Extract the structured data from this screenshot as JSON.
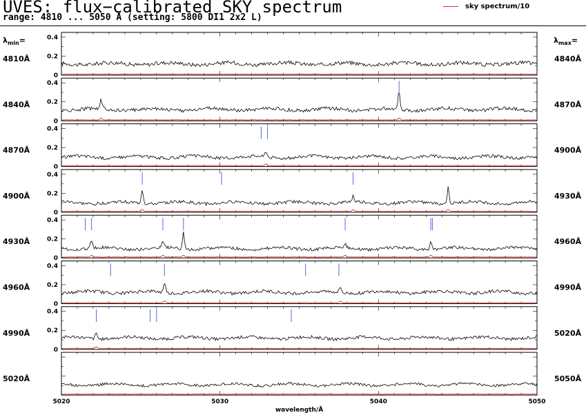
{
  "header": {
    "title": "UVES: flux−calibrated SKY spectrum",
    "subtitle": "range: 4810 ... 5050 Å (setting: 5800 DI1 2x2 L)",
    "legend_label": "sky spectrum/10"
  },
  "side_labels": {
    "lambda_min_label": "λ",
    "lambda_min_sub": "min",
    "lambda_max_label": "λ",
    "lambda_max_sub": "max",
    "eq": "="
  },
  "chart_data": {
    "type": "line",
    "xlabel": "wavelength/Å",
    "colors": {
      "flux": "#000000",
      "sky": "#e03030",
      "marker": "#5566dd"
    },
    "panels": [
      {
        "min_label": "4810Å",
        "max_label": "4840Å",
        "x_range": [
          4810,
          4840
        ],
        "ylim": [
          0,
          0.45
        ],
        "yticks": [
          "0",
          "0.2",
          "0.4"
        ],
        "baseline": 0.12,
        "noise": 0.02,
        "peaks": [],
        "markers": []
      },
      {
        "min_label": "4840Å",
        "max_label": "4870Å",
        "x_range": [
          4840,
          4870
        ],
        "ylim": [
          0,
          0.45
        ],
        "yticks": [
          "0",
          "0.2",
          "0.4"
        ],
        "baseline": 0.12,
        "noise": 0.018,
        "peaks": [
          [
            4842.5,
            0.22
          ],
          [
            4861.3,
            0.31
          ]
        ],
        "markers": [
          4861.3
        ]
      },
      {
        "min_label": "4870Å",
        "max_label": "4900Å",
        "x_range": [
          4870,
          4900
        ],
        "ylim": [
          0,
          0.45
        ],
        "yticks": [
          "0",
          "0.2",
          "0.4"
        ],
        "baseline": 0.1,
        "noise": 0.016,
        "peaks": [
          [
            4882.9,
            0.16
          ]
        ],
        "markers": [
          4882.6,
          4883.0
        ]
      },
      {
        "min_label": "4900Å",
        "max_label": "4930Å",
        "x_range": [
          4900,
          4930
        ],
        "ylim": [
          0,
          0.45
        ],
        "yticks": [
          "0",
          "0.2",
          "0.4"
        ],
        "baseline": 0.1,
        "noise": 0.016,
        "peaks": [
          [
            4905.1,
            0.25
          ],
          [
            4918.4,
            0.16
          ],
          [
            4924.4,
            0.27
          ]
        ],
        "markers": [
          4905.1,
          4910.1,
          4918.4
        ]
      },
      {
        "min_label": "4930Å",
        "max_label": "4960Å",
        "x_range": [
          4930,
          4960
        ],
        "ylim": [
          0,
          0.45
        ],
        "yticks": [
          "0",
          "0.2",
          "0.4"
        ],
        "baseline": 0.1,
        "noise": 0.016,
        "peaks": [
          [
            4931.9,
            0.19
          ],
          [
            4936.4,
            0.16
          ],
          [
            4937.7,
            0.27
          ],
          [
            4947.9,
            0.15
          ],
          [
            4953.3,
            0.17
          ]
        ],
        "markers": [
          4931.5,
          4931.9,
          4936.4,
          4937.7,
          4947.9,
          4953.3,
          4953.4
        ]
      },
      {
        "min_label": "4960Å",
        "max_label": "4990Å",
        "x_range": [
          4960,
          4990
        ],
        "ylim": [
          0,
          0.45
        ],
        "yticks": [
          "0",
          "0.2",
          "0.4"
        ],
        "baseline": 0.12,
        "noise": 0.017,
        "peaks": [
          [
            4966.5,
            0.23
          ],
          [
            4977.6,
            0.18
          ]
        ],
        "markers": [
          4963.1,
          4966.5,
          4975.4,
          4977.5
        ]
      },
      {
        "min_label": "4990Å",
        "max_label": "5020Å",
        "x_range": [
          4990,
          5020
        ],
        "ylim": [
          0,
          0.45
        ],
        "yticks": [
          "0",
          "0.2",
          "0.4"
        ],
        "baseline": 0.12,
        "noise": 0.016,
        "peaks": [
          [
            4992.2,
            0.18
          ]
        ],
        "markers": [
          4992.2,
          4995.6,
          4996.0,
          5004.5
        ]
      },
      {
        "min_label": "5020Å",
        "max_label": "5050Å",
        "x_range": [
          5020,
          5050
        ],
        "ylim": [
          0,
          0.45
        ],
        "yticks": [],
        "baseline": 0.11,
        "noise": 0.014,
        "peaks": [],
        "markers": []
      }
    ],
    "bottom_axis": {
      "ticks": [
        5020,
        5030,
        5040,
        5050
      ],
      "tick_labels": [
        "5020",
        "5030",
        "5040",
        "5050"
      ]
    }
  }
}
